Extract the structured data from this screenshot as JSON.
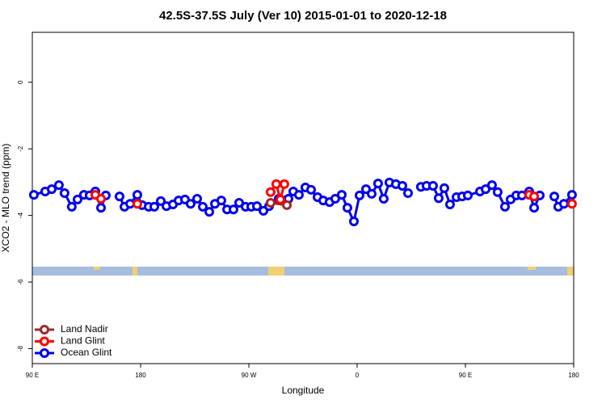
{
  "chart_data": {
    "type": "line",
    "title": "42.5S-37.5S July (Ver 10)   2015-01-01 to 2020-12-18",
    "x_label": "Longitude",
    "y_label": "XCO2 - MLO trend (ppm)",
    "xlim": [
      90,
      540
    ],
    "ylim": [
      -8.45,
      1.5
    ],
    "xticks": [
      {
        "value": 90,
        "label": "90 E"
      },
      180,
      {
        "value": 270,
        "label": "90 W"
      },
      {
        "value": 360,
        "label": "0"
      },
      {
        "value": 450,
        "label": "90 E"
      },
      {
        "value": 540,
        "label": "180"
      }
    ],
    "yticks": [
      0,
      -2,
      -4,
      -6,
      -8
    ],
    "legend": "bottom-left",
    "series": [
      {
        "name": "Ocean Glint",
        "color": "#0000ee",
        "x": [
          91.3,
          100.7,
          106.1,
          112.1,
          116.8,
          122.8,
          127.6,
          132.9,
          137.6,
          142.4,
          147.1,
          151.1,
          null,
          162.5,
          166.6,
          171.3,
          177.3,
          181.3,
          186.7,
          191.4,
          196.8,
          201.5,
          206.9,
          211.6,
          216.9,
          221.6,
          227.0,
          231.7,
          237.1,
          241.8,
          247.1,
          251.9,
          257.2,
          261.9,
          267.3,
          272.0,
          276.7,
          282.1,
          286.8,
          294.8,
          299.5,
          302.9,
          306.9,
          311.6,
          317.0,
          321.7,
          327.1,
          331.8,
          337.1,
          341.8,
          347.2,
          351.9,
          357.3,
          362.0,
          367.4,
          372.1,
          377.4,
          382.1,
          386.8,
          392.2,
          397.6,
          402.3,
          null,
          413.0,
          417.7,
          423.1,
          427.8,
          432.5,
          437.2,
          442.6,
          447.3,
          452.0,
          462.1,
          466.8,
          472.1,
          476.8,
          482.9,
          487.6,
          492.3,
          497.0,
          503.0,
          507.1,
          511.8,
          null,
          523.9,
          527.2,
          531.9,
          538.6
        ],
        "values": [
          -3.38,
          -3.28,
          -3.21,
          -3.09,
          -3.33,
          -3.74,
          -3.52,
          -3.38,
          -3.4,
          -3.28,
          -3.77,
          -3.4,
          null,
          -3.43,
          -3.74,
          -3.65,
          -3.38,
          -3.69,
          -3.74,
          -3.74,
          -3.57,
          -3.72,
          -3.67,
          -3.55,
          -3.52,
          -3.65,
          -3.5,
          -3.74,
          -3.89,
          -3.65,
          -3.55,
          -3.82,
          -3.82,
          -3.62,
          -3.74,
          -3.74,
          -3.72,
          -3.86,
          -3.72,
          -3.5,
          -3.55,
          -3.5,
          -3.28,
          -3.38,
          -3.16,
          -3.23,
          -3.45,
          -3.55,
          -3.6,
          -3.5,
          -3.38,
          -3.77,
          -4.18,
          -3.4,
          -3.21,
          -3.35,
          -3.04,
          -3.5,
          -3.01,
          -3.06,
          -3.11,
          -3.33,
          null,
          -3.14,
          -3.11,
          -3.11,
          -3.48,
          -3.18,
          -3.67,
          -3.45,
          -3.43,
          -3.4,
          -3.28,
          -3.21,
          -3.09,
          -3.3,
          -3.74,
          -3.52,
          -3.4,
          -3.4,
          -3.28,
          -3.77,
          -3.4,
          null,
          -3.43,
          -3.74,
          -3.65,
          -3.38
        ]
      },
      {
        "name": "Land Nadir",
        "color": "#9b2a2a",
        "x": [
          288.1,
          301.6
        ],
        "values": [
          -3.62,
          -3.69
        ]
      },
      {
        "name": "Land Glint",
        "color": "#ff0000",
        "x": [
          142.4,
          147.1,
          null,
          177.3,
          null,
          288.1,
          292.8,
          296.2,
          299.5,
          null,
          503.0,
          507.1,
          null,
          538.6
        ],
        "values": [
          -3.38,
          -3.5,
          null,
          -3.65,
          null,
          -3.3,
          -3.06,
          -3.52,
          -3.06,
          null,
          -3.38,
          -3.43,
          null,
          -3.65
        ]
      }
    ]
  }
}
